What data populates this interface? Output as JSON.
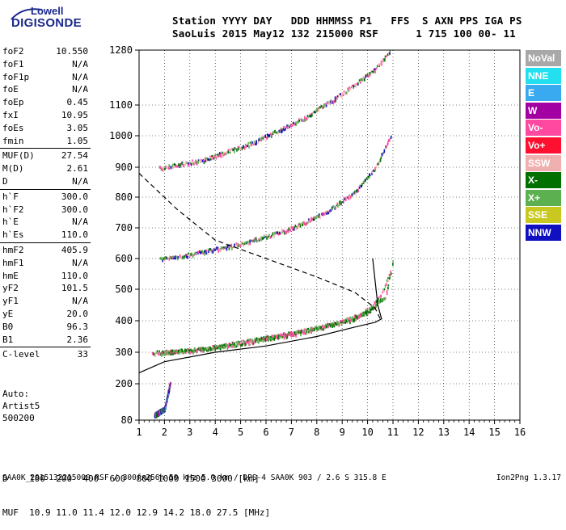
{
  "logo": {
    "line1": "Lowell",
    "line2": "DIGISONDE"
  },
  "header": {
    "line1": "Station YYYY DAY   DDD HHMMSS P1   FFS  S AXN PPS IGA PS",
    "line2": "SaoLuis 2015 May12 132 215000 RSF      1 715 100 00- 11"
  },
  "params": [
    {
      "name": "foF2",
      "value": "10.550"
    },
    {
      "name": "foF1",
      "value": "N/A"
    },
    {
      "name": "foF1p",
      "value": "N/A"
    },
    {
      "name": "foE",
      "value": "N/A"
    },
    {
      "name": "foEp",
      "value": "0.45"
    },
    {
      "name": "fxI",
      "value": "10.95"
    },
    {
      "name": "foEs",
      "value": "3.05"
    },
    {
      "name": "fmin",
      "value": "1.05"
    },
    {
      "name": "MUF(D)",
      "value": "27.54"
    },
    {
      "name": "M(D)",
      "value": "2.61"
    },
    {
      "name": "D",
      "value": "N/A"
    },
    {
      "name": "h`F",
      "value": "300.0"
    },
    {
      "name": "h`F2",
      "value": "300.0"
    },
    {
      "name": "h`E",
      "value": "N/A"
    },
    {
      "name": "h`Es",
      "value": "110.0"
    },
    {
      "name": "hmF2",
      "value": "405.9"
    },
    {
      "name": "hmF1",
      "value": "N/A"
    },
    {
      "name": "hmE",
      "value": "110.0"
    },
    {
      "name": "yF2",
      "value": "101.5"
    },
    {
      "name": "yF1",
      "value": "N/A"
    },
    {
      "name": "yE",
      "value": "20.0"
    },
    {
      "name": "B0",
      "value": "96.3"
    },
    {
      "name": "B1",
      "value": "2.36"
    },
    {
      "name": "C-level",
      "value": "33"
    }
  ],
  "auto": {
    "line1": "Auto:",
    "line2": "Artist5",
    "line3": "500200"
  },
  "freq_table": {
    "line1": "D    100  200  400  600  800 1000 1500 3000 [km]",
    "line2": "MUF  10.9 11.0 11.4 12.0 12.9 14.2 18.0 27.5 [MHz]"
  },
  "footer": {
    "left": "SAA0K_2015132215000.RSF / 300fx256h 50 kHz 5.0 km / DPS-4 SAA0K 903 / 2.6 S 315.8 E",
    "right": "Ion2Png 1.3.17"
  },
  "legend": [
    {
      "label": "NoVal",
      "color": "#a8a8a8"
    },
    {
      "label": "NNE",
      "color": "#22e0f0"
    },
    {
      "label": "E",
      "color": "#3aaaf0"
    },
    {
      "label": "W",
      "color": "#a300a3"
    },
    {
      "label": "Vo-",
      "color": "#ff48a0"
    },
    {
      "label": "Vo+",
      "color": "#ff1030"
    },
    {
      "label": "SSW",
      "color": "#f0b0b0"
    },
    {
      "label": "X-",
      "color": "#007000"
    },
    {
      "label": "X+",
      "color": "#5cb050"
    },
    {
      "label": "SSE",
      "color": "#c8c820"
    },
    {
      "label": "NNW",
      "color": "#1010c0"
    }
  ],
  "chart_data": {
    "type": "scatter",
    "xlim": [
      1,
      16
    ],
    "ylim": [
      80,
      1280
    ],
    "x_ticks": [
      "1",
      "2",
      "3",
      "4",
      "5",
      "6",
      "7",
      "8",
      "9",
      "10",
      "11",
      "12",
      "13",
      "14",
      "15",
      "16"
    ],
    "y_ticks": [
      "80",
      "200",
      "300",
      "400",
      "500",
      "600",
      "700",
      "800",
      "900",
      "1000",
      "1100",
      "1280"
    ],
    "traces": [
      {
        "name": "F2 O-trace",
        "x": [
          1.5,
          3,
          5,
          7,
          8.5,
          9.5,
          10.2,
          10.6,
          10.9
        ],
        "y": [
          300,
          308,
          330,
          360,
          388,
          410,
          450,
          500,
          560
        ]
      },
      {
        "name": "F2 X-trace",
        "x": [
          1.8,
          3.5,
          5.5,
          7.5,
          9,
          10,
          10.7,
          11.0
        ],
        "y": [
          300,
          312,
          340,
          370,
          400,
          430,
          480,
          600
        ]
      },
      {
        "name": "2F echo",
        "x": [
          1.8,
          3,
          5,
          7,
          8.5,
          9.5,
          10.3,
          10.9
        ],
        "y": [
          600,
          615,
          650,
          700,
          760,
          820,
          900,
          1000
        ]
      },
      {
        "name": "3F echo",
        "x": [
          1.8,
          3.5,
          5.5,
          7.5,
          9,
          10.3,
          10.9
        ],
        "y": [
          900,
          925,
          980,
          1060,
          1140,
          1220,
          1280
        ]
      },
      {
        "name": "Es",
        "x": [
          1.6,
          2.0,
          2.2
        ],
        "y": [
          100,
          120,
          200
        ]
      }
    ],
    "profile_solid": {
      "x": [
        1,
        2,
        4,
        6,
        8,
        9.5,
        10.3,
        10.55,
        10.4,
        10.2
      ],
      "y": [
        235,
        270,
        300,
        320,
        350,
        380,
        395,
        406,
        450,
        600
      ]
    },
    "profile_dashed": {
      "x": [
        1,
        2.5,
        4,
        6,
        8,
        9.5,
        10.3,
        10.5
      ],
      "y": [
        880,
        760,
        660,
        600,
        540,
        490,
        440,
        406
      ]
    }
  }
}
